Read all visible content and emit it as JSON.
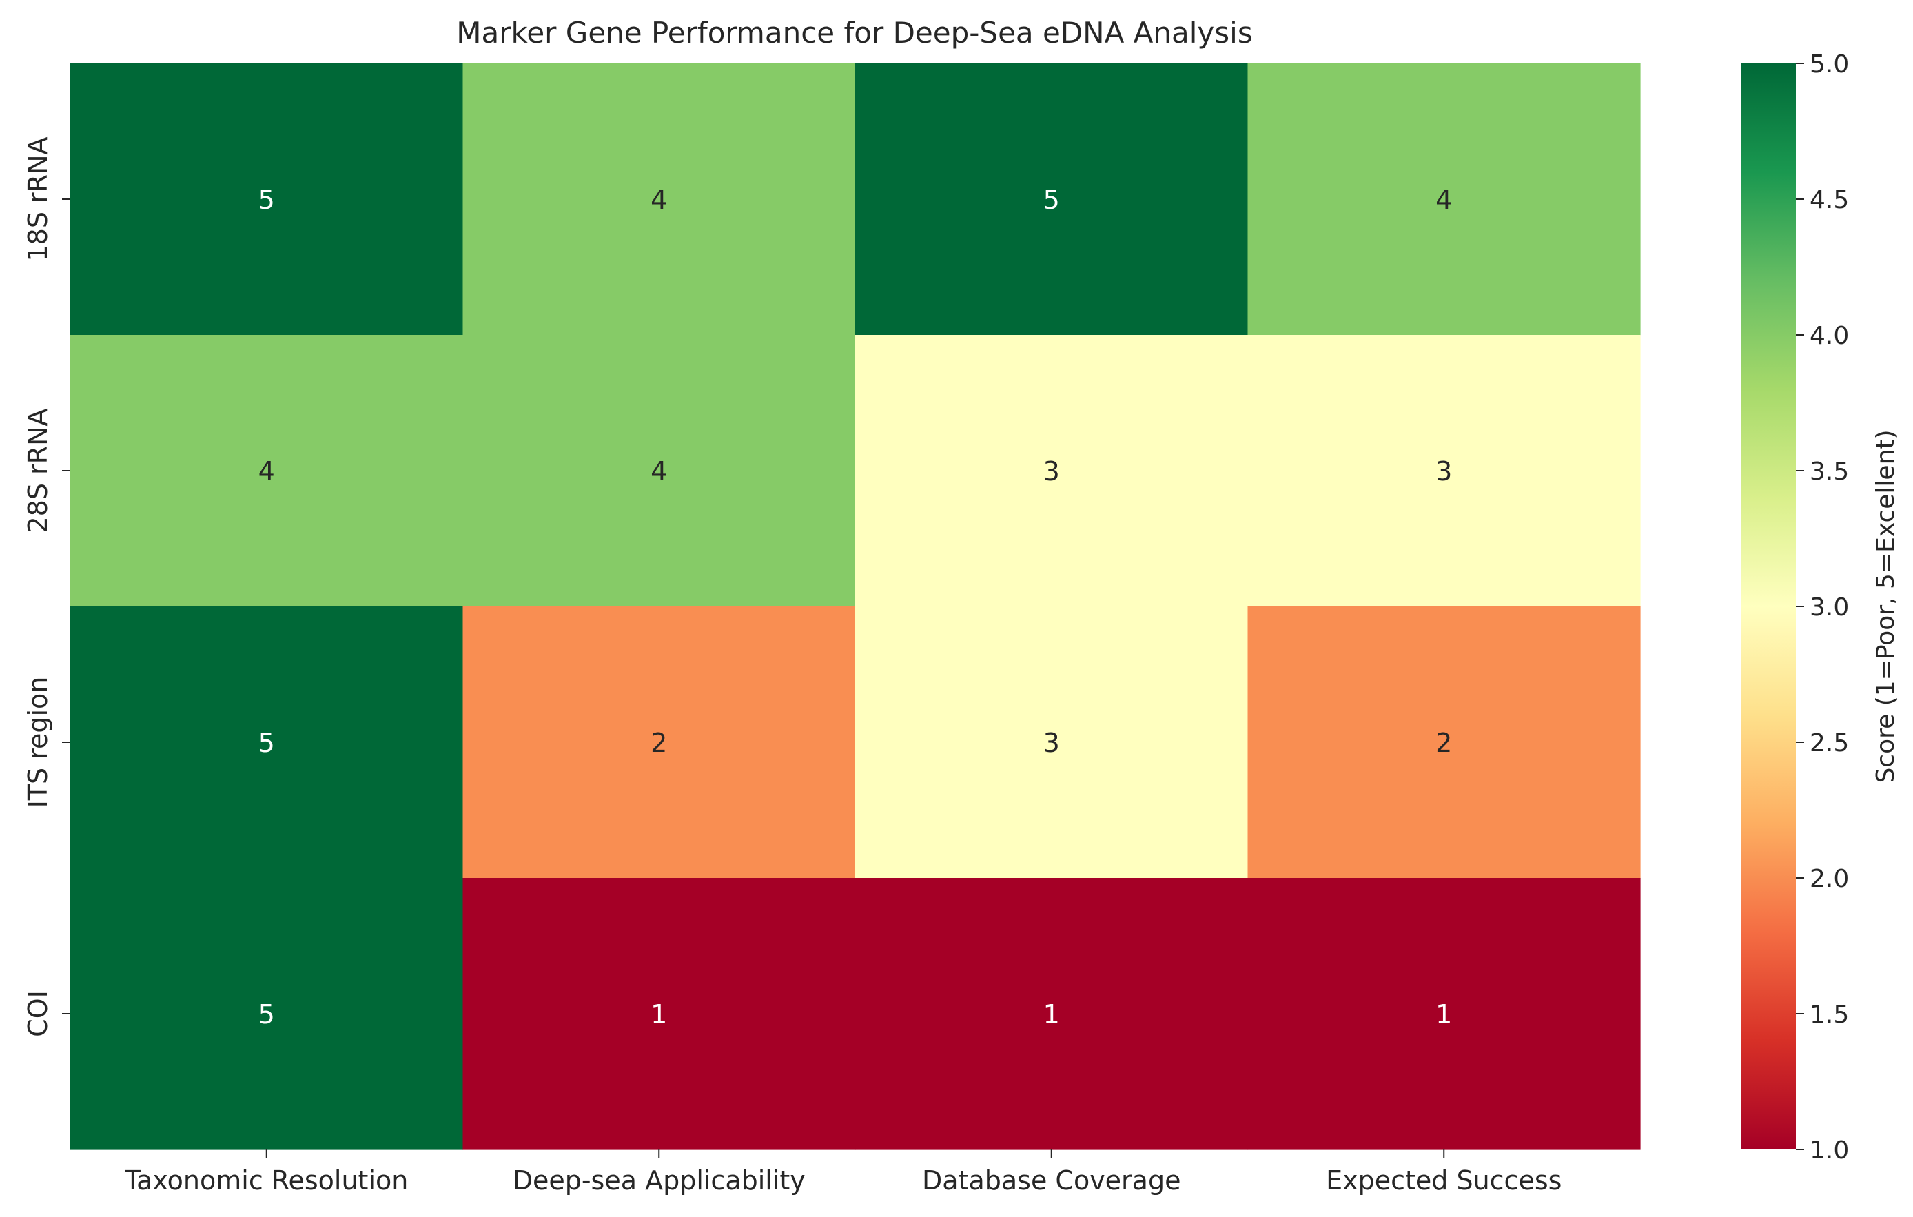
{
  "chart_data": {
    "type": "heatmap",
    "title": "Marker Gene Performance for Deep-Sea eDNA Analysis",
    "xlabel": "",
    "ylabel": "",
    "columns": [
      "Taxonomic Resolution",
      "Deep-sea Applicability",
      "Database Coverage",
      "Expected Success"
    ],
    "rows": [
      "18S rRNA",
      "28S rRNA",
      "ITS region",
      "COI"
    ],
    "values": [
      [
        5,
        4,
        5,
        4
      ],
      [
        4,
        4,
        3,
        3
      ],
      [
        5,
        2,
        3,
        2
      ],
      [
        5,
        1,
        1,
        1
      ]
    ],
    "colormap": "RdYlGn",
    "vmin": 1,
    "vmax": 5,
    "annotations": true,
    "colorbar": {
      "label": "Score (1=Poor, 5=Excellent)",
      "ticks": [
        "1.0",
        "1.5",
        "2.0",
        "2.5",
        "3.0",
        "3.5",
        "4.0",
        "4.5",
        "5.0"
      ],
      "tick_values": [
        1.0,
        1.5,
        2.0,
        2.5,
        3.0,
        3.5,
        4.0,
        4.5,
        5.0
      ]
    },
    "colors": {
      "text": "#262626",
      "annotation_light": "#ffffff",
      "annotation_dark": "#262626"
    }
  }
}
